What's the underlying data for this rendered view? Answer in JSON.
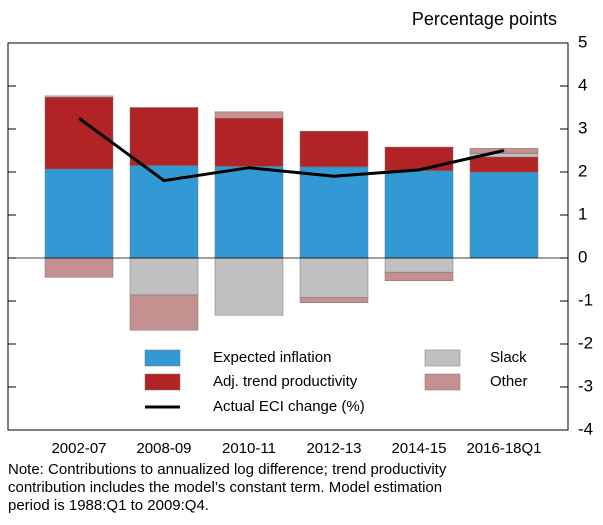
{
  "chart_data": {
    "type": "bar",
    "stacked": true,
    "y_label": "Percentage points",
    "categories": [
      "2002-07",
      "2008-09",
      "2010-11",
      "2012-13",
      "2014-15",
      "2016-18Q1"
    ],
    "series": [
      {
        "name": "Expected inflation",
        "color": "#3399d4",
        "values": [
          2.07,
          2.15,
          2.13,
          2.12,
          2.03,
          2.0
        ]
      },
      {
        "name": "Adj. trend productivity",
        "color": "#b22325",
        "values": [
          1.67,
          1.35,
          1.12,
          0.83,
          0.55,
          0.35
        ]
      },
      {
        "name": "Slack",
        "color": "#c0c0c0",
        "values": [
          0.03,
          -0.86,
          -1.33,
          -0.92,
          -0.33,
          0.08
        ]
      },
      {
        "name": "Other",
        "color": "#c49090",
        "values": [
          -0.45,
          -0.82,
          0.15,
          -0.12,
          -0.2,
          0.12
        ]
      },
      {
        "name": "Actual ECI change (%)",
        "type": "line",
        "color": "#000000",
        "values": [
          3.25,
          1.8,
          2.1,
          1.9,
          2.05,
          2.5
        ]
      }
    ],
    "ylim": [
      -4,
      5
    ],
    "yticks": [
      -4,
      -3,
      -2,
      -1,
      0,
      1,
      2,
      3,
      4,
      5
    ],
    "note": [
      "Note:  Contributions to annualized log difference; trend productivity",
      "contribution includes the model’s constant term.  Model estimation",
      "period is 1988:Q1 to 2009:Q4."
    ]
  }
}
